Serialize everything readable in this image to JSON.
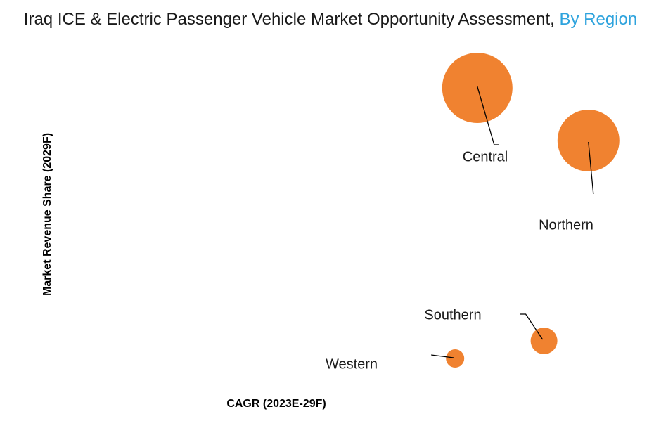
{
  "title_main": "Iraq ICE & Electric Passenger Vehicle Market Opportunity Assessment,",
  "title_accent": "By Region",
  "colors": {
    "bubble": "#f08230",
    "accent": "#2ea3dd",
    "text": "#1a1a1a"
  },
  "chart_data": {
    "type": "bubble",
    "xlabel": "CAGR (2023E-29F)",
    "ylabel": "Market Revenue Share (2029F)",
    "axis_values_shown": false,
    "xlim": [
      0,
      100
    ],
    "ylim": [
      0,
      100
    ],
    "series": [
      {
        "name": "Central",
        "x": 72,
        "y": 87,
        "size": 100
      },
      {
        "name": "Northern",
        "x": 92,
        "y": 72,
        "size": 88
      },
      {
        "name": "Southern",
        "x": 84,
        "y": 15,
        "size": 38
      },
      {
        "name": "Western",
        "x": 68,
        "y": 10,
        "size": 26
      }
    ]
  }
}
